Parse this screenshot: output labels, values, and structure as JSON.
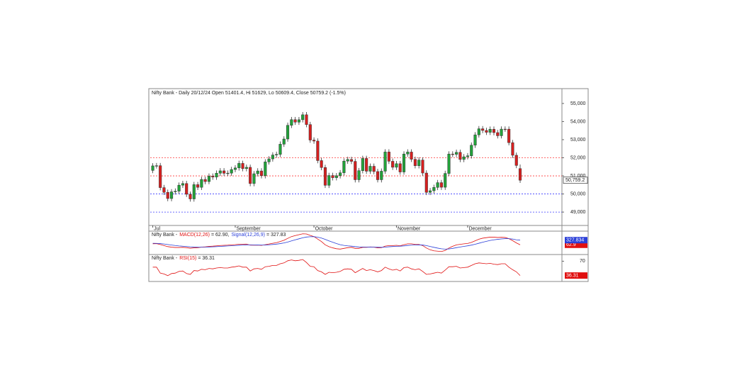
{
  "chart_data": [
    {
      "type": "candlestick",
      "title": "Nifty Bank - Daily 20/12/24 Open 51401.4, Hi 51629, Lo 50609.4, Close 50759.2 (-1.5%)",
      "categories": [
        "Jul",
        null,
        null,
        null,
        null,
        null,
        null,
        null,
        null,
        null,
        null,
        null,
        null,
        null,
        null,
        null,
        null,
        null,
        null,
        null,
        null,
        null,
        "September",
        null,
        null,
        null,
        null,
        null,
        null,
        null,
        null,
        null,
        null,
        null,
        null,
        null,
        null,
        null,
        null,
        null,
        null,
        null,
        null,
        "October",
        null,
        null,
        null,
        null,
        null,
        null,
        null,
        null,
        null,
        null,
        null,
        null,
        null,
        null,
        null,
        null,
        null,
        null,
        null,
        null,
        null,
        "November",
        null,
        null,
        null,
        null,
        null,
        null,
        null,
        null,
        null,
        null,
        null,
        null,
        null,
        null,
        null,
        null,
        null,
        null,
        "December",
        null,
        null,
        null,
        null,
        null,
        null,
        null,
        null,
        null,
        null,
        null,
        null,
        null,
        null
      ],
      "open": [
        51300,
        51553,
        51564,
        50351,
        50093,
        49748,
        50119,
        50156,
        50485,
        50577,
        49985,
        49727,
        50516,
        50368,
        50803,
        50685,
        50985,
        50933,
        51148,
        51278,
        51143,
        51152,
        51351,
        51440,
        51690,
        51400,
        51473,
        50576,
        51117,
        51272,
        51010,
        51772,
        51938,
        52153,
        52188,
        52750,
        53037,
        53793,
        54105,
        53968,
        54101,
        54375,
        53834,
        52978,
        52922,
        51845,
        51462,
        50479,
        51021,
        50899,
        51007,
        51172,
        51816,
        51906,
        51801,
        50787,
        51288,
        51962,
        51257,
        51531,
        51239,
        50787,
        51259,
        52320,
        51807,
        51475,
        51673,
        51215,
        52207,
        52317,
        51916,
        51561,
        51876,
        51157,
        50088,
        50179,
        50363,
        50626,
        50372,
        51135,
        52207,
        52191,
        52301,
        51906,
        52055,
        52109,
        52695,
        53266,
        53603,
        53509,
        53407,
        53577,
        53391,
        53216,
        53583,
        53581,
        52834,
        52139,
        51401.4
      ],
      "high": [
        51703,
        51714,
        51714,
        50501,
        50243,
        50269,
        50306,
        50635,
        50727,
        50727,
        50135,
        50666,
        50666,
        50953,
        50953,
        51135,
        51135,
        51298,
        51428,
        51428,
        51302,
        51501,
        51590,
        51840,
        51840,
        51623,
        51623,
        51267,
        51422,
        51422,
        51922,
        52088,
        52303,
        52338,
        52900,
        53187,
        53943,
        54255,
        54255,
        54251,
        54525,
        54525,
        53984,
        53128,
        53072,
        51995,
        51612,
        51171,
        51171,
        51157,
        51322,
        51966,
        52056,
        52056,
        51951,
        51438,
        52112,
        52112,
        51681,
        51681,
        51389,
        51409,
        52470,
        52470,
        51957,
        51823,
        51823,
        52357,
        52467,
        52467,
        52066,
        52026,
        52026,
        51307,
        50329,
        50513,
        50776,
        50776,
        51285,
        52357,
        52357,
        52451,
        52451,
        52205,
        52259,
        52845,
        53416,
        53753,
        53753,
        53659,
        53727,
        53727,
        53541,
        53733,
        53733,
        53731,
        52984,
        52289,
        51629
      ],
      "low": [
        51150,
        51403,
        50201,
        49943,
        49598,
        49598,
        49969,
        50006,
        50335,
        49835,
        49577,
        49577,
        50218,
        50218,
        50535,
        50535,
        50783,
        50783,
        50998,
        50993,
        50993,
        51002,
        51201,
        51290,
        51250,
        51250,
        50426,
        50426,
        50967,
        50860,
        50860,
        51622,
        51788,
        52003,
        52038,
        52600,
        52887,
        53643,
        53818,
        53818,
        53951,
        53684,
        52828,
        52772,
        51695,
        51312,
        50329,
        50329,
        50749,
        50749,
        50857,
        51022,
        51666,
        51651,
        50637,
        50637,
        51138,
        51107,
        51107,
        51089,
        50637,
        50637,
        51109,
        51657,
        51325,
        51325,
        51065,
        51065,
        52057,
        51766,
        51411,
        51411,
        51007,
        49938,
        49938,
        50029,
        50213,
        50222,
        50222,
        50985,
        52041,
        52041,
        51756,
        51756,
        51905,
        51959,
        52545,
        53116,
        53359,
        53257,
        53257,
        53241,
        53066,
        53066,
        53431,
        52684,
        51989,
        51425,
        50609.4
      ],
      "close": [
        51553,
        51564,
        50351,
        50093,
        49748,
        50119,
        50156,
        50485,
        50577,
        49985,
        49727,
        50516,
        50368,
        50803,
        50685,
        50985,
        50933,
        51148,
        51278,
        51143,
        51152,
        51351,
        51440,
        51690,
        51400,
        51473,
        50576,
        51117,
        51272,
        51010,
        51772,
        51938,
        52153,
        52188,
        52750,
        53037,
        53793,
        54105,
        53968,
        54101,
        54375,
        53834,
        52978,
        52922,
        51845,
        51462,
        50479,
        51021,
        50899,
        51007,
        51172,
        51816,
        51906,
        51801,
        50787,
        51288,
        51962,
        51257,
        51531,
        51239,
        50787,
        51259,
        52320,
        51807,
        51475,
        51673,
        51215,
        52207,
        52317,
        51916,
        51561,
        51876,
        51157,
        50088,
        50179,
        50363,
        50626,
        50372,
        51135,
        52207,
        52191,
        52301,
        51906,
        52055,
        52109,
        52695,
        53266,
        53603,
        53509,
        53407,
        53577,
        53391,
        53216,
        53583,
        53581,
        52834,
        52139,
        51575,
        50759.2
      ],
      "close_label": "50,759.2",
      "up_color": "#22a33a",
      "down_color": "#d71f1f",
      "ylim": [
        48260,
        55780
      ],
      "yticks": [
        {
          "value": 49000,
          "label": "49,000"
        },
        {
          "value": 50000,
          "label": "50,000"
        },
        {
          "value": 51000,
          "label": "51,000"
        },
        {
          "value": 52000,
          "label": "52,000"
        },
        {
          "value": 53000,
          "label": "53,000"
        },
        {
          "value": 54000,
          "label": "54,000"
        },
        {
          "value": 55000,
          "label": "55,000"
        }
      ],
      "levels": [
        {
          "value": 52000,
          "color": "#ff3b3b"
        },
        {
          "value": 51000,
          "color": "#ff3b3b"
        },
        {
          "value": 50000,
          "color": "#3b3bff"
        },
        {
          "value": 49000,
          "color": "#3b3bff"
        }
      ]
    },
    {
      "type": "line",
      "title_prefix": "Nifty Bank -",
      "ylim": [
        -450,
        800
      ],
      "series": [
        {
          "name": "MACD(12,26)",
          "color": "#e01010",
          "legend_text": "= 62.90,",
          "values": [
            120,
            130,
            80,
            20,
            -40,
            -70,
            -90,
            -90,
            -80,
            -100,
            -130,
            -110,
            -100,
            -70,
            -55,
            -30,
            -15,
            5,
            25,
            35,
            45,
            60,
            75,
            95,
            100,
            105,
            45,
            40,
            45,
            30,
            70,
            110,
            150,
            185,
            250,
            320,
            430,
            530,
            590,
            640,
            690,
            680,
            600,
            530,
            390,
            250,
            60,
            -40,
            -110,
            -160,
            -180,
            -140,
            -100,
            -80,
            -140,
            -140,
            -80,
            -80,
            -60,
            -70,
            -110,
            -100,
            -10,
            20,
            20,
            35,
            10,
            70,
            120,
            120,
            90,
            85,
            20,
            -120,
            -220,
            -280,
            -300,
            -320,
            -260,
            -120,
            -20,
            60,
            90,
            120,
            140,
            200,
            290,
            380,
            440,
            470,
            500,
            500,
            480,
            490,
            480,
            410,
            300,
            170,
            62.9
          ]
        },
        {
          "name": "Signal(12,26,9)",
          "color": "#2b3fd8",
          "legend_text": "= 327.83",
          "values": [
            150,
            146,
            133,
            110,
            80,
            50,
            22,
            0,
            -16,
            -33,
            -52,
            -64,
            -71,
            -71,
            -68,
            -60,
            -51,
            -40,
            -27,
            -15,
            -3,
            10,
            23,
            37,
            50,
            61,
            58,
            54,
            52,
            48,
            52,
            64,
            81,
            102,
            132,
            170,
            222,
            284,
            345,
            404,
            461,
            505,
            524,
            525,
            498,
            448,
            370,
            288,
            208,
            134,
            71,
            29,
            3,
            -14,
            -39,
            -59,
            -63,
            -66,
            -65,
            -66,
            -75,
            -80,
            -66,
            -49,
            -35,
            -21,
            -15,
            2,
            26,
            45,
            54,
            60,
            52,
            18,
            -30,
            -80,
            -124,
            -163,
            -182,
            -170,
            -140,
            -100,
            -62,
            -26,
            7,
            46,
            95,
            152,
            210,
            262,
            310,
            348,
            374,
            397,
            414,
            413,
            390,
            346,
            327.834
          ]
        }
      ]
    },
    {
      "type": "line",
      "title_prefix": "Nifty Bank -",
      "ylim": [
        24,
        84
      ],
      "yticks": [
        70
      ],
      "series": [
        {
          "name": "RSI(15)",
          "color": "#e01010",
          "legend_text": "= 36.31",
          "values": [
            56,
            56,
            42,
            40,
            36,
            41,
            42,
            46,
            47,
            41,
            39,
            48,
            47,
            51,
            50,
            53,
            52,
            54,
            55,
            54,
            54,
            56,
            57,
            59,
            56,
            56,
            47,
            52,
            53,
            51,
            57,
            58,
            60,
            60,
            64,
            66,
            71,
            73,
            71,
            72,
            74,
            67,
            58,
            57,
            48,
            45,
            39,
            44,
            43,
            44,
            46,
            51,
            52,
            51,
            43,
            48,
            53,
            48,
            50,
            48,
            45,
            48,
            56,
            52,
            49,
            51,
            47,
            55,
            56,
            52,
            50,
            52,
            46,
            39,
            40,
            42,
            44,
            42,
            49,
            57,
            57,
            58,
            54,
            55,
            56,
            60,
            64,
            66,
            65,
            64,
            65,
            63,
            62,
            64,
            64,
            56,
            50,
            45,
            36.31
          ]
        }
      ]
    }
  ]
}
